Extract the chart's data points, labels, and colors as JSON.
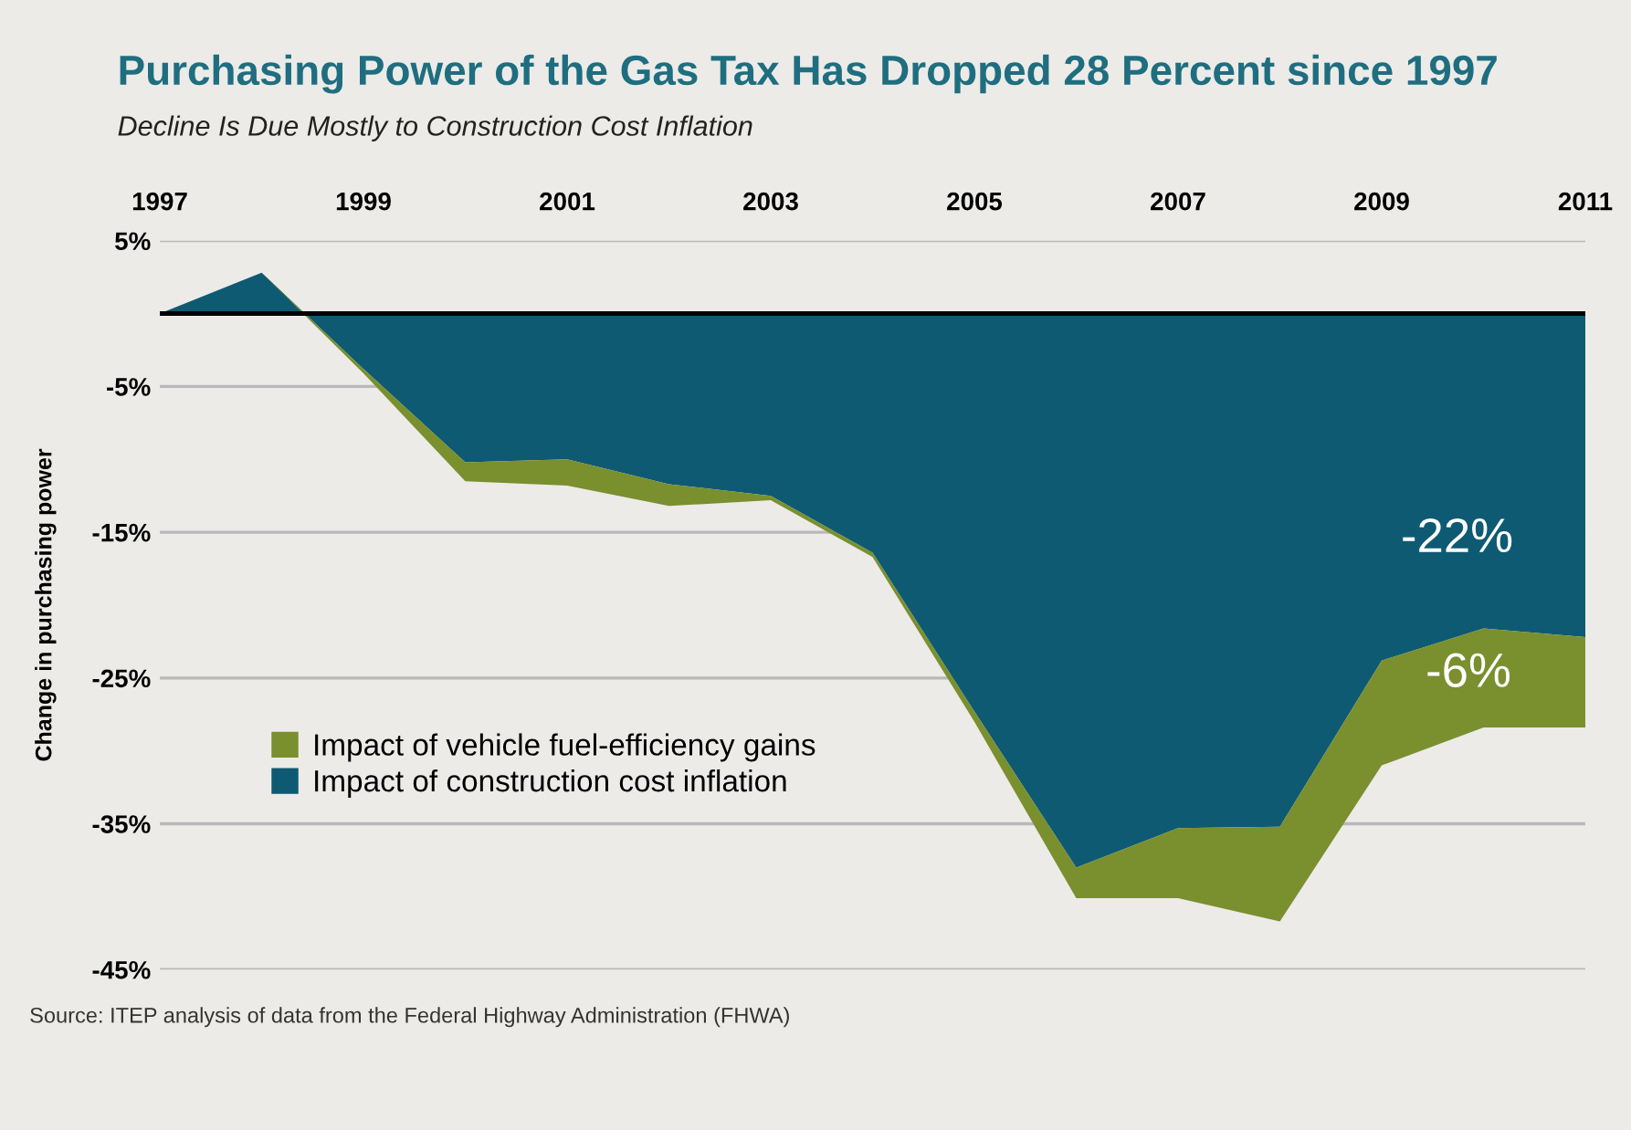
{
  "chart_data": {
    "type": "area",
    "stacked": true,
    "title": "Purchasing Power of the Gas Tax Has Dropped 28 Percent since 1997",
    "subtitle": "Decline Is Due Mostly to Construction Cost Inflation",
    "ylabel": "Change in purchasing power",
    "x": [
      1997,
      1998,
      1999,
      2000,
      2001,
      2002,
      2003,
      2004,
      2005,
      2006,
      2007,
      2008,
      2009,
      2010,
      2011
    ],
    "series": [
      {
        "name": "Impact of construction cost inflation",
        "color": "#0e5a73",
        "values": [
          0,
          2.8,
          -3.8,
          -10.2,
          -10.0,
          -11.7,
          -12.5,
          -16.4,
          -27.3,
          -38.0,
          -35.3,
          -35.2,
          -23.8,
          -21.6,
          -22.2
        ]
      },
      {
        "name": "Impact of vehicle fuel-efficiency gains",
        "color": "#7a8f2e",
        "values": [
          0,
          0,
          -0.3,
          -1.3,
          -1.8,
          -1.5,
          -0.3,
          -0.3,
          -0.7,
          -2.1,
          -4.8,
          -6.5,
          -7.2,
          -6.8,
          -6.2
        ]
      }
    ],
    "xlim": [
      1997,
      2011
    ],
    "xticks": [
      1997,
      1999,
      2001,
      2003,
      2005,
      2007,
      2009,
      2011
    ],
    "ylim": [
      -45,
      5
    ],
    "yticks": [
      {
        "value": 5,
        "label": "5%"
      },
      {
        "value": -5,
        "label": "-5%"
      },
      {
        "value": -15,
        "label": "-15%"
      },
      {
        "value": -25,
        "label": "-25%"
      },
      {
        "value": -35,
        "label": "-35%"
      },
      {
        "value": -45,
        "label": "-45%"
      }
    ],
    "grid": "y",
    "legend": "left",
    "ref_lines": [
      {
        "axis": "y",
        "value": 0,
        "color": "#000000"
      }
    ],
    "annotations": [
      "-22%",
      "-6%",
      "Source: ITEP analysis of data from the Federal Highway Administration (FHWA)"
    ]
  }
}
